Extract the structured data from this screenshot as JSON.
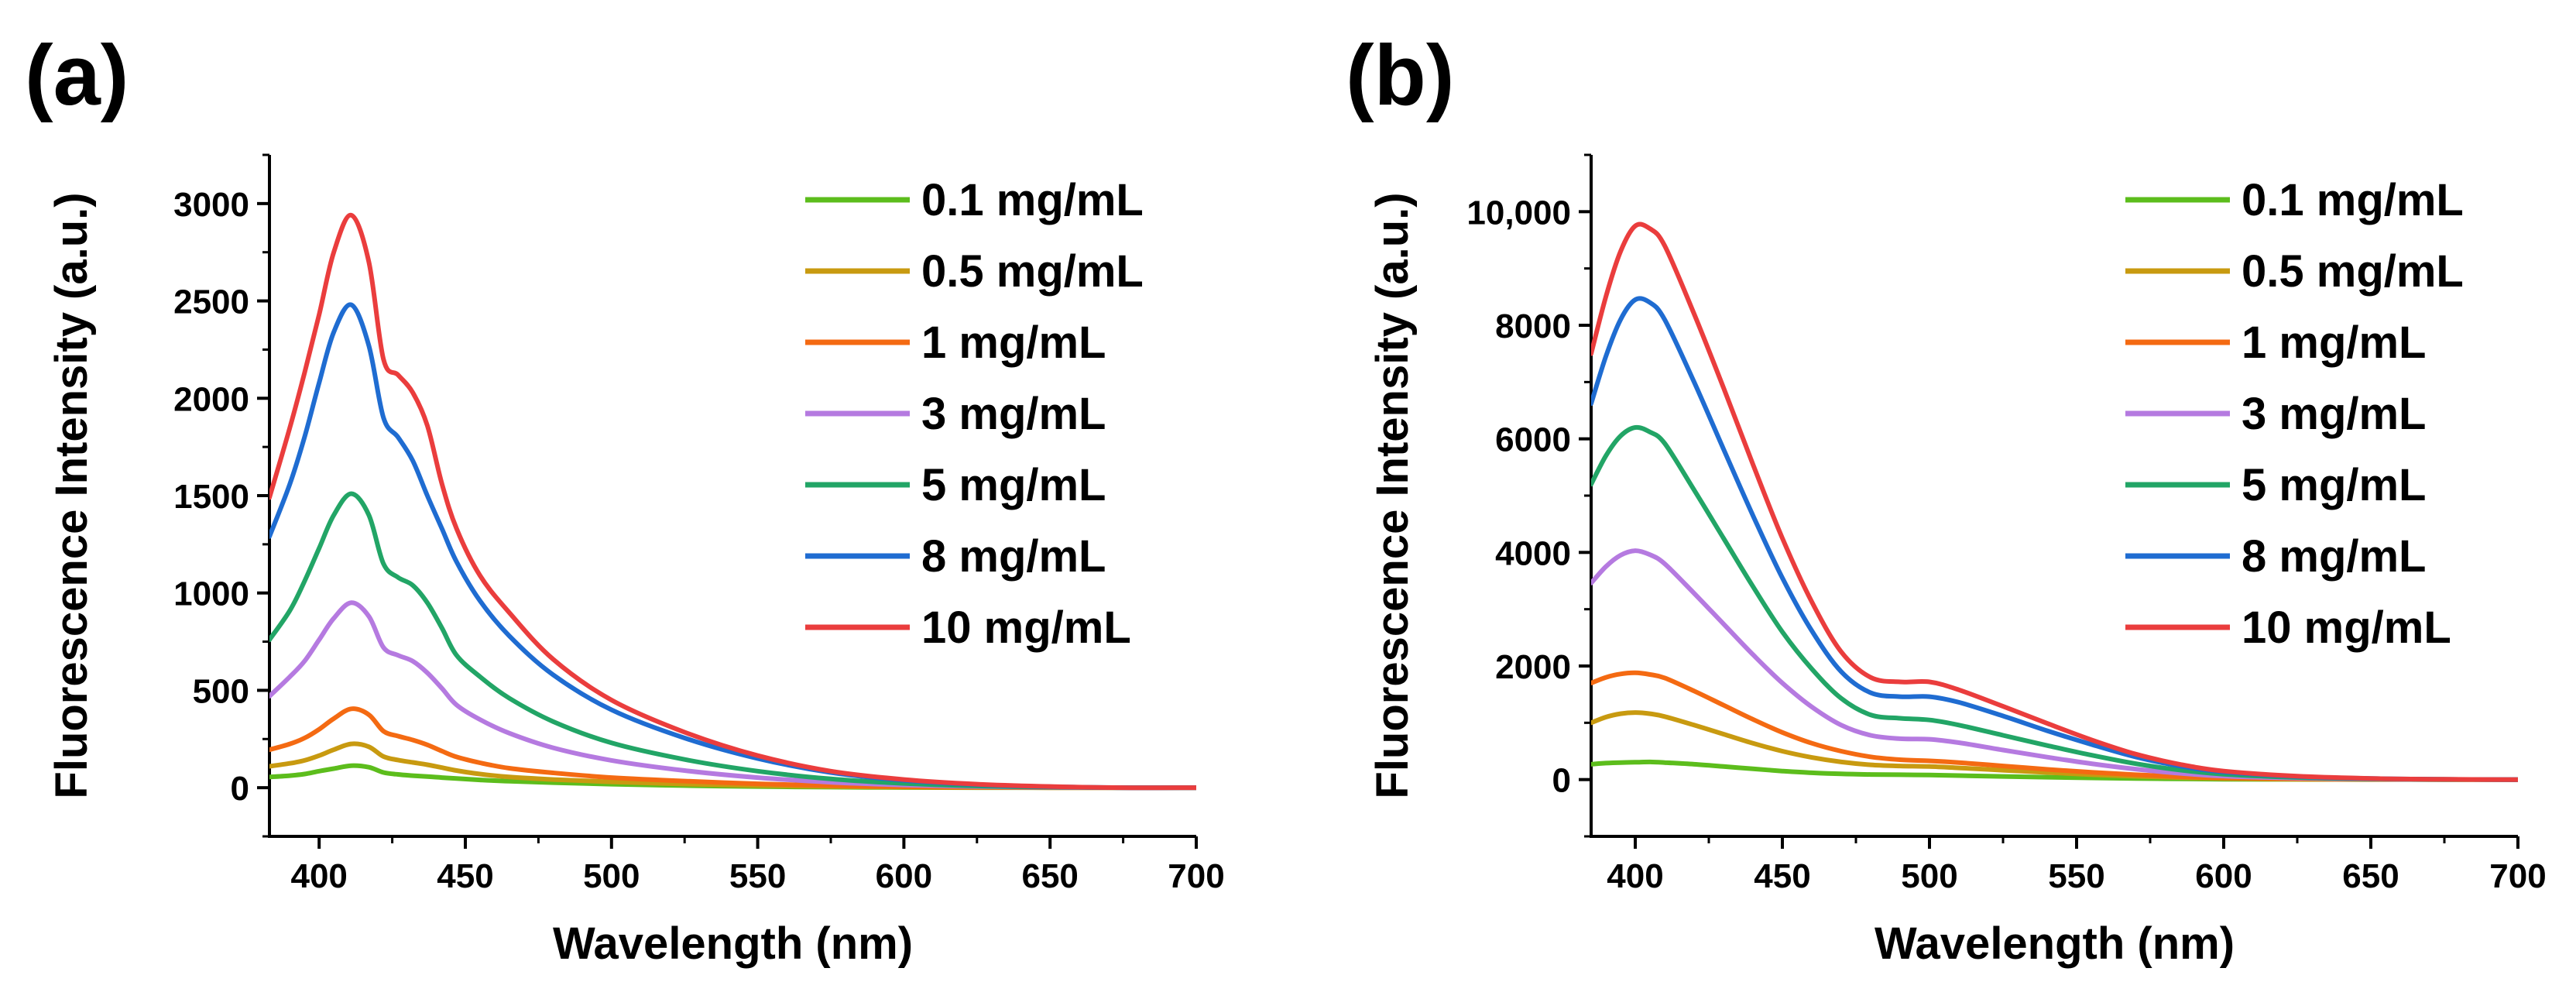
{
  "chart_data": [
    {
      "panel_label": "(a)",
      "type": "line",
      "xlabel": "Wavelength (nm)",
      "ylabel": "Fluorescence Intensity (a.u.)",
      "xlim": [
        383,
        700
      ],
      "ylim": [
        -250,
        3250
      ],
      "xticks": [
        400,
        450,
        500,
        550,
        600,
        650,
        700
      ],
      "xtick_labels": [
        "400",
        "450",
        "500",
        "550",
        "600",
        "650",
        "700"
      ],
      "yticks": [
        0,
        500,
        1000,
        1500,
        2000,
        2500,
        3000
      ],
      "ytick_labels": [
        "0",
        "500",
        "1000",
        "1500",
        "2000",
        "2500",
        "3000"
      ],
      "legend_position": "top-right",
      "x": [
        383,
        390,
        395,
        400,
        405,
        411,
        417,
        422,
        427,
        432,
        437,
        442,
        447,
        455,
        465,
        480,
        500,
        525,
        550,
        575,
        600,
        625,
        650,
        675,
        700
      ],
      "series": [
        {
          "name": "0.1 mg/mL",
          "color": "#5cbd1c",
          "values": [
            55,
            62,
            70,
            85,
            98,
            113,
            105,
            78,
            68,
            62,
            57,
            52,
            47,
            40,
            33,
            26,
            18,
            11,
            6,
            3,
            1,
            0,
            0,
            0,
            0
          ]
        },
        {
          "name": "0.5 mg/mL",
          "color": "#c89a10",
          "values": [
            110,
            125,
            140,
            165,
            195,
            225,
            210,
            160,
            142,
            130,
            118,
            103,
            88,
            70,
            55,
            42,
            30,
            19,
            11,
            6,
            3,
            1,
            0,
            0,
            0
          ]
        },
        {
          "name": "1 mg/mL",
          "color": "#f46a12",
          "values": [
            195,
            225,
            255,
            300,
            355,
            405,
            375,
            290,
            265,
            245,
            220,
            188,
            158,
            128,
            100,
            76,
            52,
            34,
            20,
            11,
            5,
            2,
            0,
            0,
            0
          ]
        },
        {
          "name": "3 mg/mL",
          "color": "#b57ae0",
          "values": [
            470,
            570,
            650,
            760,
            870,
            950,
            880,
            720,
            680,
            650,
            590,
            510,
            425,
            350,
            280,
            205,
            140,
            88,
            52,
            28,
            14,
            6,
            2,
            0,
            0
          ]
        },
        {
          "name": "5 mg/mL",
          "color": "#22a566",
          "values": [
            760,
            910,
            1060,
            1230,
            1400,
            1510,
            1400,
            1150,
            1080,
            1040,
            950,
            820,
            680,
            570,
            460,
            340,
            230,
            145,
            85,
            45,
            22,
            9,
            3,
            0,
            0
          ]
        },
        {
          "name": "8 mg/mL",
          "color": "#1f6cd1",
          "values": [
            1290,
            1560,
            1800,
            2080,
            2340,
            2480,
            2270,
            1900,
            1800,
            1680,
            1500,
            1330,
            1160,
            960,
            780,
            580,
            400,
            255,
            150,
            78,
            38,
            16,
            5,
            0,
            0
          ]
        },
        {
          "name": "10 mg/mL",
          "color": "#ea3d3d",
          "values": [
            1490,
            1850,
            2130,
            2430,
            2750,
            2940,
            2700,
            2200,
            2120,
            2030,
            1860,
            1560,
            1330,
            1090,
            900,
            660,
            450,
            285,
            165,
            85,
            42,
            18,
            6,
            0,
            0
          ]
        }
      ]
    },
    {
      "panel_label": "(b)",
      "type": "line",
      "xlabel": "Wavelength (nm)",
      "ylabel": "Fluorescence Intensity (a.u.)",
      "xlim": [
        385,
        700
      ],
      "ylim": [
        -1000,
        11000
      ],
      "xticks": [
        400,
        450,
        500,
        550,
        600,
        650,
        700
      ],
      "xtick_labels": [
        "400",
        "450",
        "500",
        "550",
        "600",
        "650",
        "700"
      ],
      "yticks": [
        0,
        2000,
        4000,
        6000,
        8000,
        10000
      ],
      "ytick_labels": [
        "0",
        "2000",
        "4000",
        "6000",
        "8000",
        "10,000"
      ],
      "legend_position": "top-right",
      "x": [
        385,
        390,
        395,
        400,
        405,
        410,
        420,
        430,
        440,
        450,
        460,
        470,
        480,
        490,
        500,
        510,
        525,
        540,
        555,
        570,
        585,
        600,
        625,
        650,
        675,
        700
      ],
      "series": [
        {
          "name": "0.1 mg/mL",
          "color": "#5cbd1c",
          "values": [
            270,
            290,
            300,
            305,
            310,
            300,
            270,
            230,
            190,
            150,
            120,
            100,
            90,
            85,
            80,
            70,
            55,
            42,
            30,
            20,
            12,
            7,
            3,
            1,
            0,
            0
          ]
        },
        {
          "name": "0.5 mg/mL",
          "color": "#c89a10",
          "values": [
            1000,
            1100,
            1160,
            1180,
            1160,
            1110,
            960,
            800,
            640,
            500,
            390,
            310,
            260,
            240,
            230,
            205,
            165,
            125,
            88,
            58,
            35,
            20,
            8,
            3,
            1,
            0
          ]
        },
        {
          "name": "1 mg/mL",
          "color": "#f46a12",
          "values": [
            1700,
            1800,
            1860,
            1880,
            1850,
            1790,
            1560,
            1310,
            1060,
            830,
            640,
            500,
            400,
            350,
            330,
            300,
            240,
            180,
            128,
            85,
            52,
            30,
            12,
            4,
            1,
            0
          ]
        },
        {
          "name": "3 mg/mL",
          "color": "#b57ae0",
          "values": [
            3460,
            3750,
            3950,
            4030,
            3960,
            3800,
            3280,
            2740,
            2200,
            1700,
            1280,
            960,
            780,
            720,
            710,
            650,
            520,
            395,
            280,
            185,
            112,
            62,
            25,
            9,
            2,
            0
          ]
        },
        {
          "name": "5 mg/mL",
          "color": "#22a566",
          "values": [
            5200,
            5700,
            6050,
            6200,
            6120,
            5920,
            5100,
            4250,
            3400,
            2600,
            1950,
            1430,
            1140,
            1080,
            1050,
            960,
            780,
            600,
            430,
            280,
            168,
            95,
            38,
            13,
            3,
            0
          ]
        },
        {
          "name": "8 mg/mL",
          "color": "#1f6cd1",
          "values": [
            6620,
            7450,
            8100,
            8450,
            8400,
            8100,
            7000,
            5820,
            4650,
            3550,
            2620,
            1900,
            1530,
            1460,
            1460,
            1360,
            1120,
            860,
            620,
            400,
            240,
            135,
            54,
            18,
            4,
            0
          ]
        },
        {
          "name": "10 mg/mL",
          "color": "#ea3d3d",
          "values": [
            7500,
            8500,
            9300,
            9750,
            9700,
            9400,
            8200,
            6900,
            5550,
            4250,
            3130,
            2250,
            1800,
            1720,
            1720,
            1580,
            1290,
            990,
            700,
            450,
            270,
            150,
            60,
            20,
            5,
            0
          ]
        }
      ]
    }
  ]
}
